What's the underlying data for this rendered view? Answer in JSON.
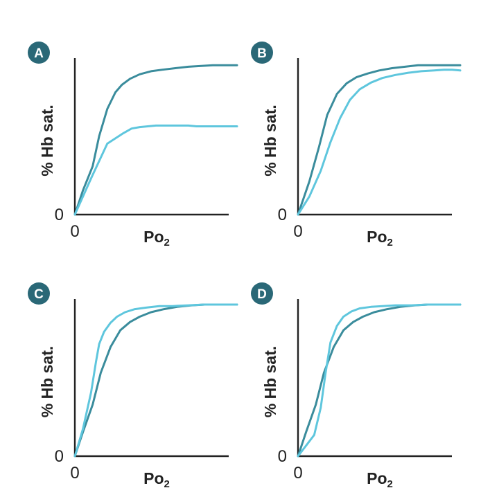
{
  "colors": {
    "dark": "#3a8c9c",
    "light": "#5ec6dd",
    "badge": "#2a6877",
    "axis": "#222222"
  },
  "chart_data": [
    {
      "panel": "A",
      "type": "line",
      "xlabel": "Po",
      "xlabel_sub": "2",
      "ylabel": "% Hb sat.",
      "x_tick": "0",
      "y_tick": "0",
      "xlim": [
        0,
        100
      ],
      "ylim": [
        0,
        100
      ],
      "series": [
        {
          "color": "dark",
          "x": [
            0,
            5,
            11,
            15,
            20,
            25,
            29,
            34,
            40,
            47,
            54,
            62,
            70,
            78,
            85,
            90,
            94,
            100
          ],
          "y": [
            0,
            16,
            32,
            52,
            70,
            81,
            86,
            90,
            93,
            95,
            96,
            97,
            98,
            98.5,
            99,
            99,
            99,
            99
          ]
        },
        {
          "color": "light",
          "x": [
            0,
            10,
            20,
            30,
            35,
            40,
            45,
            50,
            55,
            60,
            65,
            70,
            75,
            80,
            85,
            90,
            95,
            100
          ],
          "y": [
            0,
            24,
            47,
            54,
            57,
            58,
            58.5,
            59,
            59,
            59,
            59,
            59,
            58.5,
            58.5,
            58.5,
            58.5,
            58.5,
            58.5
          ]
        }
      ]
    },
    {
      "panel": "B",
      "type": "line",
      "xlabel": "Po",
      "xlabel_sub": "2",
      "ylabel": "% Hb sat.",
      "x_tick": "0",
      "y_tick": "0",
      "xlim": [
        0,
        100
      ],
      "ylim": [
        0,
        100
      ],
      "series": [
        {
          "color": "dark",
          "x": [
            0,
            7,
            13,
            18,
            24,
            30,
            36,
            43,
            50,
            58,
            66,
            74,
            82,
            90,
            95,
            100
          ],
          "y": [
            0,
            22,
            45,
            66,
            80,
            87,
            91,
            93.5,
            95.5,
            97,
            98,
            99,
            99,
            99,
            99,
            99
          ]
        },
        {
          "color": "light",
          "x": [
            0,
            7,
            14,
            20,
            26,
            32,
            38,
            45,
            52,
            60,
            68,
            76,
            84,
            90,
            95,
            100
          ],
          "y": [
            0,
            12,
            29,
            48,
            64,
            76,
            83,
            87.5,
            90.5,
            92.5,
            94,
            95,
            95.5,
            96,
            96,
            95.5
          ]
        }
      ]
    },
    {
      "panel": "C",
      "type": "line",
      "xlabel": "Po",
      "xlabel_sub": "2",
      "ylabel": "% Hb sat.",
      "x_tick": "0",
      "y_tick": "0",
      "xlim": [
        0,
        100
      ],
      "ylim": [
        0,
        100
      ],
      "series": [
        {
          "color": "dark",
          "x": [
            0,
            5,
            11,
            16,
            22,
            28,
            34,
            40,
            47,
            55,
            63,
            72,
            80,
            88,
            95,
            100
          ],
          "y": [
            0,
            16,
            34,
            55,
            72,
            83,
            88.5,
            92,
            95,
            97,
            98.5,
            99.5,
            100,
            100,
            100,
            100
          ]
        },
        {
          "color": "light",
          "x": [
            0,
            5,
            10,
            13,
            15,
            18,
            22,
            26,
            31,
            37,
            44,
            52,
            60,
            70,
            80,
            90,
            100
          ],
          "y": [
            0,
            18,
            42,
            62,
            74,
            82,
            88,
            92,
            95,
            97,
            98,
            99,
            99,
            99.5,
            100,
            100,
            100
          ]
        }
      ]
    },
    {
      "panel": "D",
      "type": "line",
      "xlabel": "Po",
      "xlabel_sub": "2",
      "ylabel": "% Hb sat.",
      "x_tick": "0",
      "y_tick": "0",
      "xlim": [
        0,
        100
      ],
      "ylim": [
        0,
        100
      ],
      "series": [
        {
          "color": "dark",
          "x": [
            0,
            5,
            11,
            16,
            22,
            28,
            34,
            40,
            47,
            55,
            63,
            72,
            80,
            88,
            95,
            100
          ],
          "y": [
            0,
            16,
            34,
            55,
            72,
            83,
            88.5,
            92,
            95,
            97,
            98.5,
            99.5,
            100,
            100,
            100,
            100
          ]
        },
        {
          "color": "light",
          "x": [
            0,
            5,
            10,
            14,
            17,
            20,
            24,
            28,
            33,
            38,
            45,
            52,
            60,
            70,
            80,
            90,
            100
          ],
          "y": [
            0,
            7,
            14,
            32,
            55,
            75,
            86,
            92,
            95.5,
            97.5,
            98.5,
            99,
            99.5,
            99.5,
            100,
            100,
            100
          ]
        }
      ]
    }
  ]
}
